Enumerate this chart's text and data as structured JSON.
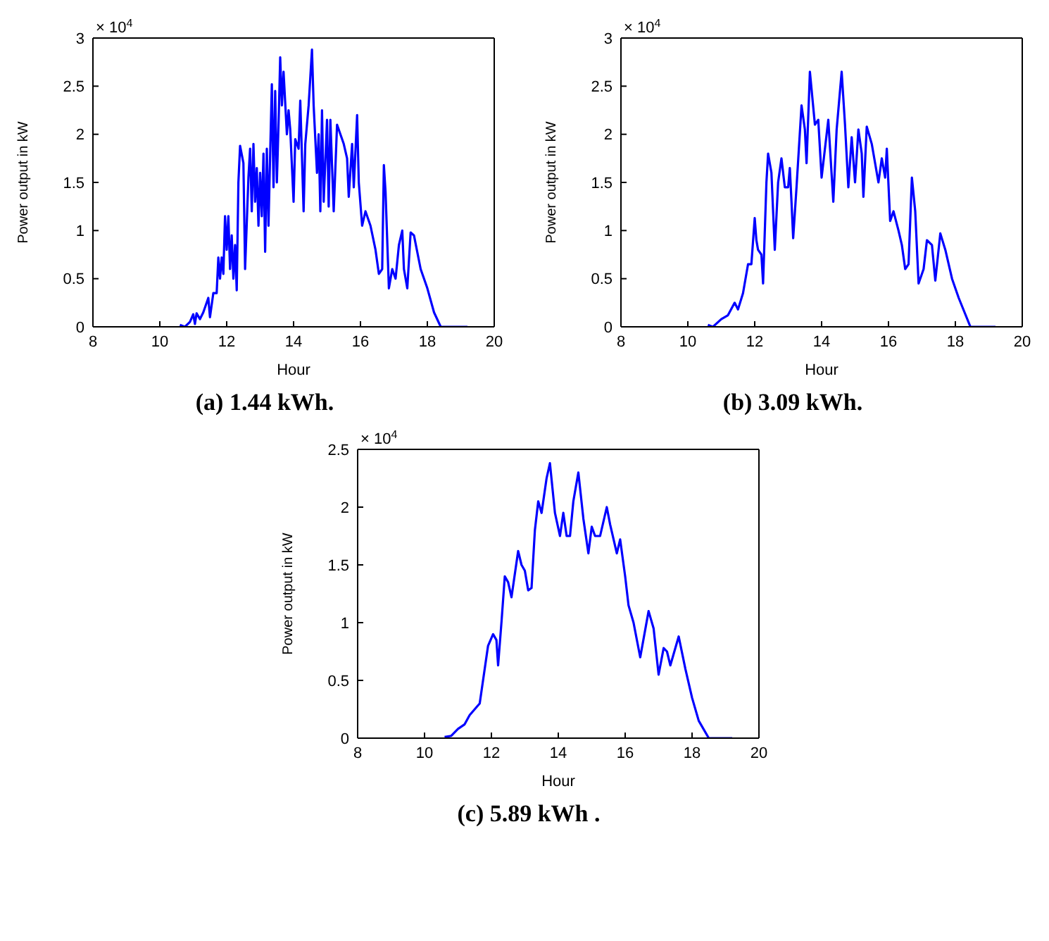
{
  "chart_data": [
    {
      "type": "line",
      "title": "(a) 1.44 kWh.",
      "xlabel": "Hour",
      "ylabel": "Power output in kW",
      "annotations": [
        "× 10$^{4}$"
      ],
      "xlim": [
        8,
        20
      ],
      "xticks": [
        8,
        10,
        12,
        14,
        16,
        18,
        20
      ],
      "ylim": [
        0,
        3
      ],
      "yticks": [
        0,
        0.5,
        1,
        1.5,
        2,
        2.5,
        3
      ],
      "series": [
        {
          "color": "#0000ff",
          "x": [
            10.6,
            10.75,
            10.9,
            11.0,
            11.05,
            11.1,
            11.2,
            11.3,
            11.45,
            11.5,
            11.6,
            11.7,
            11.75,
            11.8,
            11.85,
            11.9,
            11.95,
            12.0,
            12.05,
            12.1,
            12.15,
            12.2,
            12.25,
            12.3,
            12.35,
            12.4,
            12.5,
            12.55,
            12.65,
            12.7,
            12.75,
            12.8,
            12.85,
            12.9,
            12.95,
            13.0,
            13.05,
            13.1,
            13.15,
            13.2,
            13.25,
            13.3,
            13.35,
            13.4,
            13.45,
            13.5,
            13.55,
            13.6,
            13.65,
            13.7,
            13.8,
            13.85,
            13.9,
            14.0,
            14.05,
            14.15,
            14.2,
            14.3,
            14.35,
            14.45,
            14.55,
            14.6,
            14.7,
            14.75,
            14.8,
            14.85,
            14.9,
            15.0,
            15.05,
            15.1,
            15.2,
            15.3,
            15.5,
            15.6,
            15.65,
            15.75,
            15.8,
            15.9,
            15.95,
            16.05,
            16.15,
            16.3,
            16.45,
            16.55,
            16.65,
            16.7,
            16.75,
            16.85,
            16.95,
            17.05,
            17.15,
            17.25,
            17.3,
            17.4,
            17.5,
            17.6,
            17.8,
            18.0,
            18.2,
            18.4,
            19.2
          ],
          "values": [
            0.02,
            0,
            0.05,
            0.13,
            0.03,
            0.14,
            0.08,
            0.15,
            0.3,
            0.1,
            0.35,
            0.35,
            0.72,
            0.5,
            0.72,
            0.55,
            1.15,
            0.8,
            1.15,
            0.6,
            0.95,
            0.5,
            0.85,
            0.38,
            1.5,
            1.88,
            1.7,
            0.6,
            1.55,
            1.85,
            1.2,
            1.9,
            1.3,
            1.65,
            1.05,
            1.6,
            1.15,
            1.8,
            0.78,
            1.85,
            1.05,
            1.8,
            2.52,
            1.45,
            2.45,
            1.5,
            2.1,
            2.8,
            2.3,
            2.65,
            2.0,
            2.25,
            2.05,
            1.3,
            1.95,
            1.85,
            2.35,
            1.2,
            1.9,
            2.3,
            2.88,
            2.3,
            1.6,
            2.0,
            1.2,
            2.25,
            1.3,
            2.15,
            1.25,
            2.15,
            1.2,
            2.1,
            1.9,
            1.75,
            1.35,
            1.9,
            1.45,
            2.2,
            1.5,
            1.05,
            1.2,
            1.05,
            0.8,
            0.55,
            0.6,
            1.68,
            1.4,
            0.4,
            0.6,
            0.5,
            0.85,
            1.0,
            0.6,
            0.4,
            0.98,
            0.95,
            0.6,
            0.4,
            0.15,
            0,
            0
          ]
        }
      ]
    },
    {
      "type": "line",
      "title": "(b) 3.09 kWh.",
      "xlabel": "Hour",
      "ylabel": "Power output in kW",
      "annotations": [
        "× 10$^{4}$"
      ],
      "xlim": [
        8,
        20
      ],
      "xticks": [
        8,
        10,
        12,
        14,
        16,
        18,
        20
      ],
      "ylim": [
        0,
        3
      ],
      "yticks": [
        0,
        0.5,
        1,
        1.5,
        2,
        2.5,
        3
      ],
      "series": [
        {
          "color": "#0000ff",
          "x": [
            10.6,
            10.75,
            11.0,
            11.2,
            11.4,
            11.5,
            11.65,
            11.8,
            11.9,
            12.0,
            12.05,
            12.1,
            12.2,
            12.25,
            12.35,
            12.4,
            12.5,
            12.6,
            12.7,
            12.8,
            12.9,
            13.0,
            13.05,
            13.1,
            13.15,
            13.25,
            13.4,
            13.5,
            13.55,
            13.65,
            13.8,
            13.9,
            14.0,
            14.1,
            14.2,
            14.35,
            14.45,
            14.6,
            14.7,
            14.8,
            14.9,
            15.0,
            15.1,
            15.2,
            15.25,
            15.35,
            15.5,
            15.7,
            15.8,
            15.9,
            15.95,
            16.05,
            16.15,
            16.3,
            16.4,
            16.5,
            16.6,
            16.7,
            16.8,
            16.9,
            17.05,
            17.15,
            17.3,
            17.4,
            17.55,
            17.7,
            17.9,
            18.1,
            18.45,
            19.2
          ],
          "values": [
            0.02,
            0,
            0.08,
            0.12,
            0.25,
            0.18,
            0.35,
            0.65,
            0.65,
            1.13,
            0.9,
            0.8,
            0.75,
            0.45,
            1.5,
            1.8,
            1.6,
            0.8,
            1.5,
            1.75,
            1.45,
            1.45,
            1.65,
            1.3,
            0.92,
            1.45,
            2.3,
            2.05,
            1.7,
            2.65,
            2.1,
            2.15,
            1.55,
            1.85,
            2.15,
            1.3,
            2.05,
            2.65,
            2.1,
            1.45,
            1.97,
            1.5,
            2.05,
            1.8,
            1.35,
            2.08,
            1.9,
            1.5,
            1.75,
            1.55,
            1.85,
            1.1,
            1.2,
            1.0,
            0.85,
            0.6,
            0.65,
            1.55,
            1.2,
            0.45,
            0.6,
            0.9,
            0.85,
            0.48,
            0.97,
            0.8,
            0.5,
            0.3,
            0,
            0
          ]
        }
      ]
    },
    {
      "type": "line",
      "title": "(c) 5.89 kWh .",
      "xlabel": "Hour",
      "ylabel": "Power output in kW",
      "annotations": [
        "× 10$^{4}$"
      ],
      "xlim": [
        8,
        20
      ],
      "xticks": [
        8,
        10,
        12,
        14,
        16,
        18,
        20
      ],
      "ylim": [
        0,
        2.5
      ],
      "yticks": [
        0,
        0.5,
        1,
        1.5,
        2,
        2.5
      ],
      "series": [
        {
          "color": "#0000ff",
          "x": [
            10.6,
            10.8,
            11.0,
            11.2,
            11.35,
            11.5,
            11.65,
            11.8,
            11.9,
            12.05,
            12.15,
            12.2,
            12.3,
            12.4,
            12.5,
            12.6,
            12.8,
            12.9,
            13.0,
            13.1,
            13.2,
            13.3,
            13.4,
            13.5,
            13.65,
            13.75,
            13.9,
            14.05,
            14.15,
            14.25,
            14.35,
            14.45,
            14.6,
            14.75,
            14.9,
            15.0,
            15.1,
            15.25,
            15.45,
            15.55,
            15.75,
            15.85,
            16.0,
            16.1,
            16.25,
            16.45,
            16.7,
            16.85,
            17.0,
            17.15,
            17.25,
            17.35,
            17.6,
            17.8,
            18.0,
            18.2,
            18.5,
            19.2
          ],
          "values": [
            0.01,
            0.02,
            0.08,
            0.12,
            0.2,
            0.25,
            0.3,
            0.6,
            0.8,
            0.9,
            0.85,
            0.63,
            1.0,
            1.4,
            1.35,
            1.22,
            1.62,
            1.5,
            1.45,
            1.28,
            1.3,
            1.8,
            2.05,
            1.95,
            2.25,
            2.38,
            1.95,
            1.75,
            1.95,
            1.75,
            1.75,
            2.05,
            2.3,
            1.9,
            1.6,
            1.83,
            1.75,
            1.75,
            2.0,
            1.85,
            1.6,
            1.72,
            1.4,
            1.15,
            1.0,
            0.7,
            1.1,
            0.95,
            0.55,
            0.78,
            0.75,
            0.63,
            0.88,
            0.6,
            0.35,
            0.15,
            0,
            0
          ]
        }
      ]
    }
  ]
}
